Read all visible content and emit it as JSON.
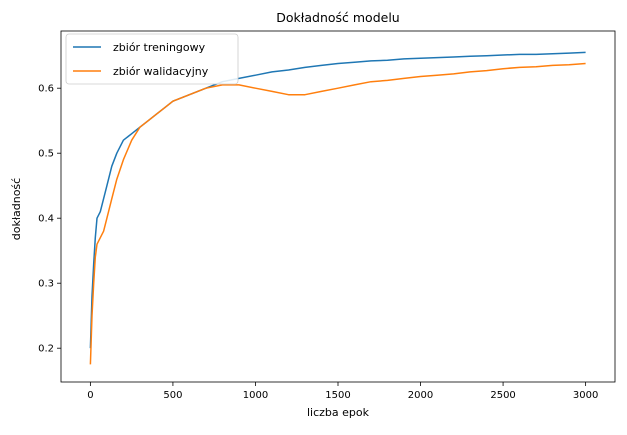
{
  "chart_data": {
    "type": "line",
    "title": "Dokładność modelu",
    "xlabel": "liczba epok",
    "ylabel": "dokładność",
    "xlim": [
      -178,
      3178
    ],
    "ylim": [
      0.148,
      0.688
    ],
    "xticks": [
      0,
      500,
      1000,
      1500,
      2000,
      2500,
      3000
    ],
    "yticks": [
      0.2,
      0.3,
      0.4,
      0.5,
      0.6
    ],
    "legend_position": "top-left",
    "grid": false,
    "series": [
      {
        "name": "zbiór treningowy",
        "color": "#1f77b4",
        "x": [
          0,
          10,
          20,
          30,
          40,
          60,
          80,
          100,
          130,
          160,
          200,
          250,
          300,
          350,
          400,
          450,
          500,
          600,
          700,
          800,
          900,
          1000,
          1100,
          1200,
          1300,
          1400,
          1500,
          1600,
          1700,
          1800,
          1900,
          2000,
          2100,
          2200,
          2300,
          2400,
          2500,
          2600,
          2700,
          2800,
          2900,
          3000
        ],
        "y": [
          0.2,
          0.28,
          0.33,
          0.37,
          0.4,
          0.41,
          0.43,
          0.45,
          0.48,
          0.5,
          0.52,
          0.53,
          0.54,
          0.55,
          0.56,
          0.57,
          0.58,
          0.59,
          0.6,
          0.61,
          0.615,
          0.62,
          0.625,
          0.628,
          0.632,
          0.635,
          0.638,
          0.64,
          0.642,
          0.643,
          0.645,
          0.646,
          0.647,
          0.648,
          0.649,
          0.65,
          0.651,
          0.652,
          0.652,
          0.653,
          0.654,
          0.655
        ]
      },
      {
        "name": "zbiór walidacyjny",
        "color": "#ff7f0e",
        "x": [
          0,
          10,
          20,
          30,
          40,
          60,
          80,
          100,
          130,
          160,
          200,
          250,
          300,
          350,
          400,
          450,
          500,
          600,
          700,
          800,
          900,
          1000,
          1100,
          1200,
          1300,
          1400,
          1500,
          1600,
          1700,
          1800,
          1900,
          2000,
          2100,
          2200,
          2300,
          2400,
          2500,
          2600,
          2700,
          2800,
          2900,
          3000
        ],
        "y": [
          0.175,
          0.25,
          0.3,
          0.34,
          0.36,
          0.37,
          0.38,
          0.4,
          0.43,
          0.46,
          0.49,
          0.52,
          0.54,
          0.55,
          0.56,
          0.57,
          0.58,
          0.59,
          0.6,
          0.605,
          0.605,
          0.6,
          0.595,
          0.59,
          0.59,
          0.595,
          0.6,
          0.605,
          0.61,
          0.612,
          0.615,
          0.618,
          0.62,
          0.622,
          0.625,
          0.627,
          0.63,
          0.632,
          0.633,
          0.635,
          0.636,
          0.638
        ]
      }
    ]
  }
}
